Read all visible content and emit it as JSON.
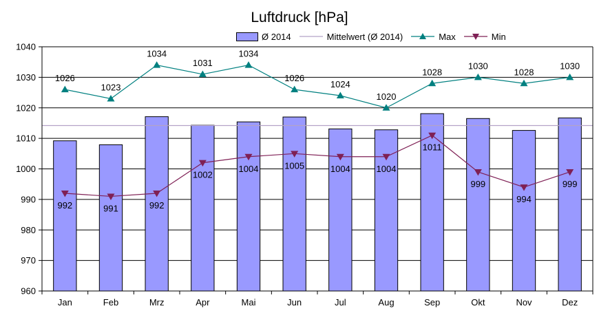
{
  "chart_data": {
    "type": "bar",
    "title": "Luftdruck [hPa]",
    "categories": [
      "Jan",
      "Feb",
      "Mrz",
      "Apr",
      "Mai",
      "Jun",
      "Jul",
      "Aug",
      "Sep",
      "Okt",
      "Nov",
      "Dez"
    ],
    "series": [
      {
        "name": "Ø 2014",
        "type": "bar",
        "color": "#9999ff",
        "values": [
          1009.2,
          1007.9,
          1017.1,
          1014.3,
          1015.4,
          1017.0,
          1013.1,
          1012.8,
          1018.1,
          1016.5,
          1012.6,
          1016.7
        ]
      },
      {
        "name": "Mittelwert (Ø 2014)",
        "type": "line",
        "color": "#b3a2c7",
        "value": 1014.2
      },
      {
        "name": "Max",
        "type": "line",
        "color": "#008080",
        "marker": "triangle-up",
        "values": [
          1026,
          1023,
          1034,
          1031,
          1034,
          1026,
          1024,
          1020,
          1028,
          1030,
          1028,
          1030
        ],
        "labels": [
          "1026",
          "1023",
          "1034",
          "1031",
          "1034",
          "1026",
          "1024",
          "1020",
          "1028",
          "1030",
          "1028",
          "1030"
        ]
      },
      {
        "name": "Min",
        "type": "line",
        "color": "#7f2055",
        "marker": "triangle-down",
        "values": [
          992,
          991,
          992,
          1002,
          1004,
          1005,
          1004,
          1004,
          1011,
          999,
          994,
          999
        ],
        "labels": [
          "992",
          "991",
          "992",
          "1002",
          "1004",
          "1005",
          "1004",
          "1004",
          "1011",
          "999",
          "994",
          "999"
        ]
      }
    ],
    "ylim": [
      960,
      1040
    ],
    "yticks": [
      960,
      970,
      980,
      990,
      1000,
      1010,
      1020,
      1030,
      1040
    ],
    "xlabel": "",
    "ylabel": "",
    "grid": true,
    "legend": "top"
  }
}
